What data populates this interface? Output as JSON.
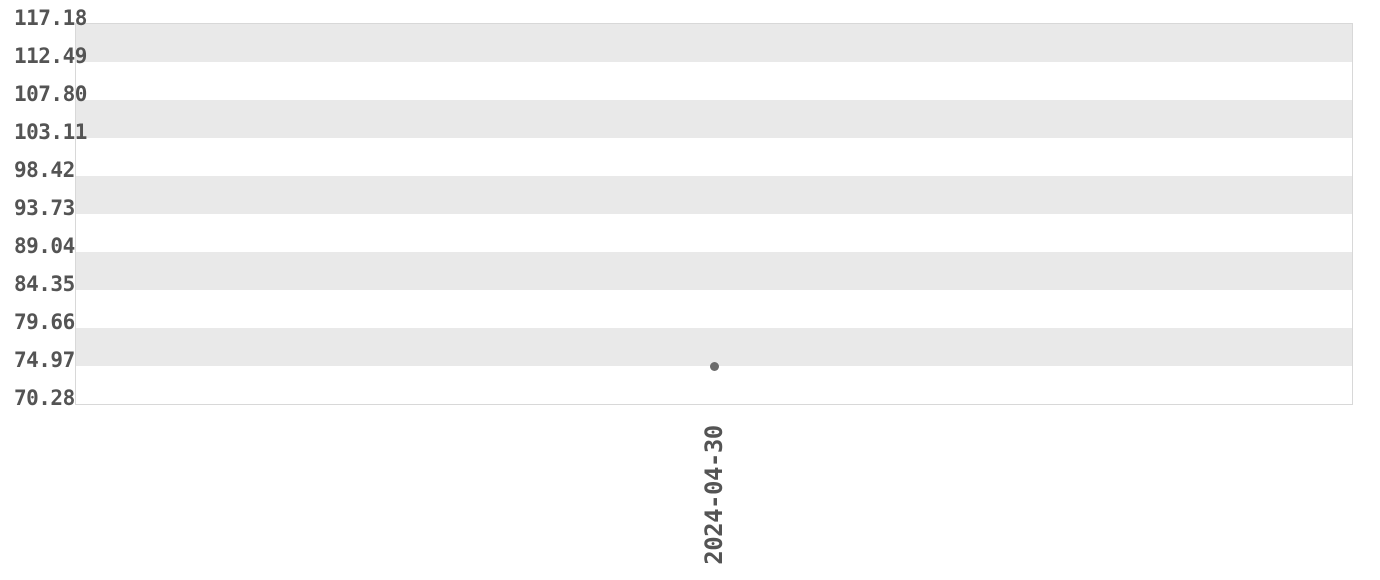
{
  "chart_data": {
    "type": "scatter",
    "title": "",
    "xlabel": "",
    "ylabel": "",
    "legend": "none",
    "grid": "alternating horizontal bands",
    "x_tick_labels": [
      "2024-04-30"
    ],
    "y_tick_labels": [
      "117.18",
      "112.49",
      "107.80",
      "103.11",
      "98.42",
      "93.73",
      "89.04",
      "84.35",
      "79.66",
      "74.97",
      "70.28"
    ],
    "y_tick_values": [
      117.18,
      112.49,
      107.8,
      103.11,
      98.42,
      93.73,
      89.04,
      84.35,
      79.66,
      74.97,
      70.28
    ],
    "ylim": [
      70.28,
      117.18
    ],
    "points": [
      {
        "x": "2024-04-30",
        "y": 74.85
      }
    ],
    "colors": {
      "band": "#e9e9e9",
      "plot_border": "#d8d8d8",
      "tick_text": "#545454",
      "point": "#6b6b6b",
      "background": "#ffffff"
    }
  }
}
